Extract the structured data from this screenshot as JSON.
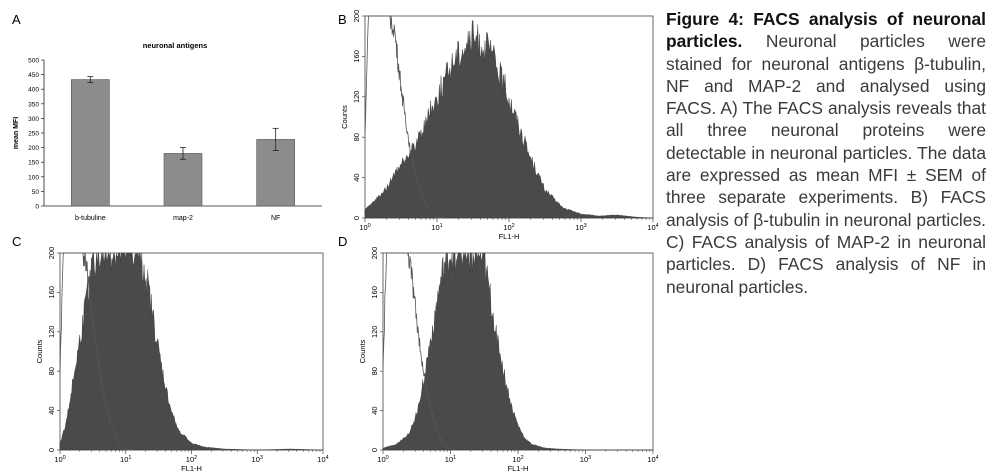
{
  "panels": {
    "a": {
      "letter": "A"
    },
    "b": {
      "letter": "B"
    },
    "c": {
      "letter": "C"
    },
    "d": {
      "letter": "D"
    }
  },
  "caption": {
    "title": "Figure 4: FACS analysis of neuronal particles.",
    "body": "Neuronal particles were stained for neuronal antigens β-tubulin, NF and MAP-2 and analysed using FACS. A) The FACS analysis reveals that all three neuronal proteins were detectable in neuronal particles. The data are expressed as mean MFI ± SEM of three separate experiments. B) FACS analysis of β-tubulin in neuronal particles. C) FACS analysis of MAP-2 in neuronal particles. D) FACS analysis of NF in neuronal particles."
  },
  "colors": {
    "bar": "#8c8c8c",
    "histogram_fill": "#4a4a4a",
    "control_line": "#555555"
  },
  "chart_data": [
    {
      "type": "bar",
      "title": "neuronal antigens",
      "xlabel": "",
      "ylabel": "mean MFI",
      "categories": [
        "b-tubuline",
        "map-2",
        "NF"
      ],
      "values": [
        433,
        180,
        228
      ],
      "errors": [
        10,
        20,
        38
      ],
      "ylim": [
        0,
        500
      ],
      "yticks": [
        0,
        50,
        100,
        150,
        200,
        250,
        300,
        350,
        400,
        450,
        500
      ],
      "grid": false
    },
    {
      "type": "area",
      "panel": "B",
      "xlabel": "FL1-H",
      "ylabel": "Counts",
      "xscale": "log",
      "xlim": [
        1,
        10000
      ],
      "ylim": [
        0,
        200
      ],
      "xticks": [
        "10^0",
        "10^1",
        "10^2",
        "10^3",
        "10^4"
      ],
      "yticks": [
        0,
        40,
        80,
        120,
        160,
        200
      ],
      "series": [
        {
          "role": "stained",
          "style": "filled",
          "log_x": [
            0,
            0.25,
            0.5,
            0.75,
            1.0,
            1.25,
            1.5,
            1.75,
            2.0,
            2.25,
            2.5,
            2.75,
            3.0,
            3.25,
            3.5,
            3.75,
            4.0
          ],
          "counts": [
            8,
            25,
            52,
            80,
            120,
            160,
            180,
            165,
            120,
            68,
            28,
            10,
            4,
            2,
            3,
            1,
            0
          ]
        },
        {
          "role": "control",
          "style": "line",
          "log_x": [
            0,
            0.05,
            0.1,
            0.2,
            0.3,
            0.35,
            0.4,
            0.45,
            0.5,
            0.55,
            0.6,
            0.65,
            0.7,
            0.75,
            0.8,
            0.85,
            0.9,
            0.95,
            1.0,
            1.1
          ],
          "counts": [
            80,
            200,
            200,
            200,
            200,
            200,
            190,
            160,
            130,
            105,
            80,
            60,
            45,
            32,
            20,
            12,
            6,
            3,
            1,
            0
          ]
        }
      ]
    },
    {
      "type": "area",
      "panel": "C",
      "xlabel": "FL1-H",
      "ylabel": "Counts",
      "xscale": "log",
      "xlim": [
        1,
        10000
      ],
      "ylim": [
        0,
        200
      ],
      "xticks": [
        "10^0",
        "10^1",
        "10^2",
        "10^3",
        "10^4"
      ],
      "yticks": [
        0,
        40,
        80,
        120,
        160,
        200
      ],
      "series": [
        {
          "role": "stained",
          "style": "filled",
          "log_x": [
            0,
            0.1,
            0.2,
            0.3,
            0.4,
            0.5,
            0.6,
            0.7,
            0.8,
            0.9,
            1.0,
            1.1,
            1.2,
            1.3,
            1.4,
            1.5,
            1.6,
            1.7,
            1.8,
            2.0,
            2.2,
            2.5,
            3.0,
            3.5,
            4.0
          ],
          "counts": [
            6,
            30,
            70,
            110,
            150,
            190,
            200,
            200,
            200,
            200,
            200,
            200,
            200,
            180,
            140,
            100,
            65,
            38,
            20,
            7,
            3,
            1,
            0,
            1,
            0
          ]
        },
        {
          "role": "control",
          "style": "line",
          "log_x": [
            0,
            0.05,
            0.1,
            0.2,
            0.3,
            0.35,
            0.4,
            0.45,
            0.5,
            0.55,
            0.6,
            0.65,
            0.7,
            0.75,
            0.8,
            0.85,
            0.9,
            0.95,
            1.0,
            1.1
          ],
          "counts": [
            80,
            200,
            200,
            200,
            200,
            200,
            190,
            160,
            130,
            105,
            80,
            60,
            45,
            32,
            20,
            12,
            6,
            3,
            1,
            0
          ]
        }
      ]
    },
    {
      "type": "area",
      "panel": "D",
      "xlabel": "FL1-H",
      "ylabel": "Counts",
      "xscale": "log",
      "xlim": [
        1,
        10000
      ],
      "ylim": [
        0,
        200
      ],
      "xticks": [
        "10^0",
        "10^1",
        "10^2",
        "10^3",
        "10^4"
      ],
      "yticks": [
        0,
        40,
        80,
        120,
        160,
        200
      ],
      "series": [
        {
          "role": "stained",
          "style": "filled",
          "log_x": [
            0,
            0.2,
            0.4,
            0.5,
            0.6,
            0.7,
            0.8,
            0.9,
            1.0,
            1.1,
            1.2,
            1.3,
            1.4,
            1.5,
            1.6,
            1.7,
            1.8,
            1.9,
            2.0,
            2.1,
            2.2,
            2.4,
            2.6,
            3.0,
            4.0
          ],
          "counts": [
            2,
            6,
            18,
            38,
            70,
            110,
            150,
            185,
            200,
            200,
            200,
            200,
            200,
            190,
            150,
            110,
            75,
            45,
            25,
            12,
            6,
            2,
            1,
            0,
            0
          ]
        },
        {
          "role": "control",
          "style": "line",
          "log_x": [
            0,
            0.05,
            0.1,
            0.2,
            0.3,
            0.35,
            0.4,
            0.45,
            0.5,
            0.55,
            0.6,
            0.65,
            0.7,
            0.75,
            0.8,
            0.85,
            0.9,
            0.95,
            1.0,
            1.1
          ],
          "counts": [
            80,
            200,
            200,
            200,
            200,
            200,
            190,
            160,
            130,
            105,
            80,
            60,
            45,
            32,
            20,
            12,
            6,
            3,
            1,
            0
          ]
        }
      ]
    }
  ]
}
